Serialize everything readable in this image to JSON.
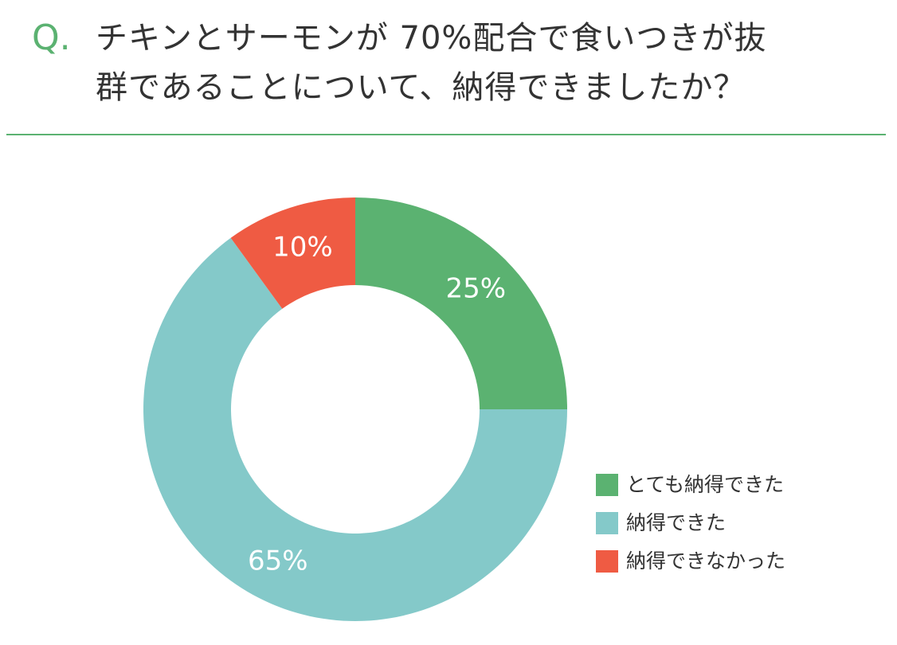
{
  "question": {
    "prefix": "Q.",
    "line1": "チキンとサーモンが 70%配合で食いつきが抜",
    "line2": "群であることについて、納得できましたか？"
  },
  "colors": {
    "accent": "#5bb271",
    "series": [
      "#5bb271",
      "#84c9c9",
      "#ef5b43"
    ],
    "text": "#333333",
    "label_text": "#ffffff"
  },
  "chart_data": {
    "type": "pie",
    "style": "donut",
    "title": "",
    "categories": [
      "とても納得できた",
      "納得できた",
      "納得できなかった"
    ],
    "values": [
      25,
      65,
      10
    ],
    "data_labels": [
      "25%",
      "65%",
      "10%"
    ],
    "legend_position": "bottom-right",
    "start": "top",
    "direction": "clockwise"
  }
}
